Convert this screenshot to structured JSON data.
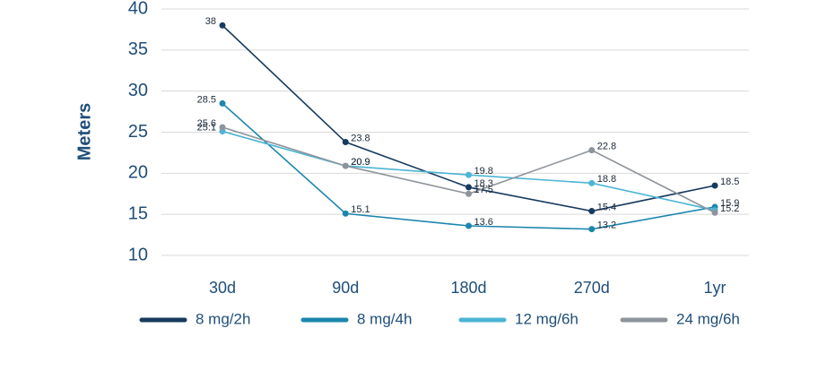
{
  "chart_data": {
    "type": "line",
    "y_label": "Meters",
    "categories": [
      "30d",
      "90d",
      "180d",
      "270d",
      "1yr"
    ],
    "series": [
      {
        "name": "8 mg/2h",
        "color": "#173a5e",
        "values": [
          38,
          23.8,
          18.3,
          15.4,
          18.5
        ]
      },
      {
        "name": "8 mg/4h",
        "color": "#1c86ad",
        "values": [
          28.5,
          15.1,
          13.6,
          13.2,
          15.9
        ]
      },
      {
        "name": "12 mg/6h",
        "color": "#4cb4d4",
        "values": [
          25.1,
          20.9,
          19.8,
          18.8,
          15.5
        ],
        "value_labels": [
          "25.1",
          "20.9",
          "19.8",
          "18.8",
          null
        ]
      },
      {
        "name": "24 mg/6h",
        "color": "#8e949b",
        "values": [
          25.6,
          20.9,
          17.5,
          22.8,
          15.2
        ]
      }
    ],
    "ylim": [
      10,
      40
    ],
    "yticks": [
      10,
      15,
      20,
      25,
      30,
      35,
      40
    ],
    "grid": true
  }
}
